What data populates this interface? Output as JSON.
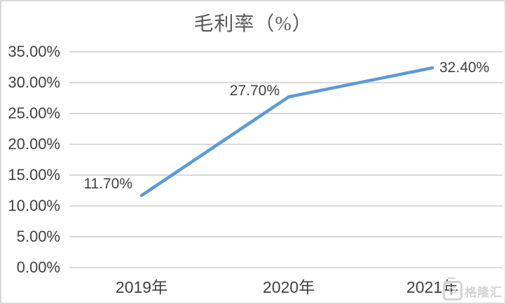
{
  "chart_data": {
    "type": "line",
    "title": "毛利率（%）",
    "categories": [
      "2019年",
      "2020年",
      "2021年"
    ],
    "series": [
      {
        "values": [
          11.7,
          27.7,
          32.4
        ],
        "labels": [
          "11.70%",
          "27.70%",
          "32.40%"
        ],
        "color": "#5B9BD5"
      }
    ],
    "ylim": [
      0,
      35
    ],
    "y_ticks": [
      35,
      30,
      25,
      20,
      15,
      10,
      5,
      0
    ],
    "y_tick_labels": [
      "35.00%",
      "30.00%",
      "25.00%",
      "20.00%",
      "15.00%",
      "10.00%",
      "5.00%",
      "0.00%"
    ],
    "grid": true,
    "legend": "none",
    "label_sides": [
      "left",
      "left",
      "right"
    ],
    "label_dy": [
      -16,
      -8,
      0
    ]
  },
  "watermark": {
    "logo_letter": "G",
    "text": "格隆汇"
  },
  "colors": {
    "line": "#5B9BD5",
    "gridline": "#D9D9D9",
    "tick_text": "#404040",
    "title_text": "#595959",
    "border": "#D9D9D9",
    "watermark": "#D2D2D2"
  }
}
